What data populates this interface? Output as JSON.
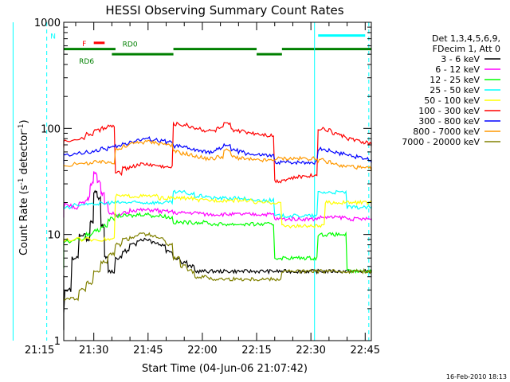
{
  "chart_data": {
    "type": "line",
    "title": "HESSI Observing Summary Count Rates",
    "xlabel": "Start Time (04-Jun-06 21:07:42)",
    "ylabel_main": "Count Rate (s",
    "ylabel_sup1": "-1",
    "ylabel_mid": " detector",
    "ylabel_sup2": "-1",
    "ylabel_end": ")",
    "x_range_minutes": [
      21.7,
      46.7
    ],
    "ylim": [
      1,
      1000
    ],
    "yscale": "log",
    "x_ticks": [
      {
        "label": "21:15",
        "value": 15
      },
      {
        "label": "21:30",
        "value": 30
      },
      {
        "label": "21:45",
        "value": 45
      },
      {
        "label": "22:00",
        "value": 60
      },
      {
        "label": "22:15",
        "value": 75
      },
      {
        "label": "22:30",
        "value": 90
      },
      {
        "label": "22:45",
        "value": 105
      }
    ],
    "y_ticks": [
      {
        "label": "1",
        "value": 1
      },
      {
        "label": "10",
        "value": 10
      },
      {
        "label": "100",
        "value": 100
      },
      {
        "label": "1000",
        "value": 1000
      }
    ],
    "legend_header": [
      "Det 1,3,4,5,6,9,",
      "FDecim 1, Att 0"
    ],
    "legend_position": "right",
    "timestamp": "16-Feb-2010 18:13",
    "flags": [
      {
        "label": "N",
        "color": "#00ffff",
        "segments": [
          [
            7.7,
            17
          ],
          [
            92,
            105
          ]
        ],
        "y": 750
      },
      {
        "label": "F",
        "color": "#ff0000",
        "segments": [
          [
            30,
            33
          ]
        ],
        "y": 640
      },
      {
        "label": "RD0",
        "color": "#008000",
        "segments": [
          [
            7.7,
            36
          ],
          [
            52,
            75
          ],
          [
            82,
            108
          ]
        ],
        "y": 560
      },
      {
        "label": "RD6",
        "color": "#008000",
        "segments": [
          [
            35,
            52
          ],
          [
            75,
            82
          ]
        ],
        "y": 500
      }
    ],
    "vlines": [
      {
        "x": 7.7,
        "color": "#00ffff",
        "style": "solid"
      },
      {
        "x": 17,
        "color": "#00ffff",
        "style": "dashed"
      },
      {
        "x": 91,
        "color": "#00ffff",
        "style": "solid"
      },
      {
        "x": 106,
        "color": "#00ffff",
        "style": "dashed"
      }
    ],
    "series": [
      {
        "name": "3 - 6 keV",
        "color": "#000000",
        "x": [
          8,
          12,
          14,
          16,
          18,
          20,
          22,
          24,
          26,
          28,
          29,
          30,
          31,
          32,
          33,
          34,
          36,
          38,
          40,
          42,
          44,
          46,
          48,
          50,
          52,
          54,
          56,
          58,
          60,
          62,
          64,
          66,
          68,
          70,
          72,
          74,
          76,
          78,
          80,
          82,
          84,
          86,
          88,
          90,
          92,
          94,
          96,
          98,
          100,
          102,
          104,
          106,
          108
        ],
        "y": [
          4,
          4,
          4,
          1.5,
          1.3,
          1.8,
          3,
          6,
          10,
          9,
          13,
          25,
          22,
          12,
          6,
          4.5,
          6,
          7,
          8,
          9,
          9,
          8.5,
          8,
          7,
          6,
          5.5,
          5,
          4.5,
          4.5,
          4.5,
          4.5,
          4.5,
          4.5,
          4.5,
          4.5,
          4.5,
          4.5,
          4.5,
          4.5,
          4.5,
          4.5,
          4.5,
          4.5,
          4.5,
          4.5,
          4.5,
          4.5,
          4.5,
          4.5,
          4.5,
          4.5,
          4.5,
          4.5
        ]
      },
      {
        "name": "6 - 12 keV",
        "color": "#ff00ff",
        "x": [
          8,
          12,
          16,
          18,
          20,
          22,
          24,
          26,
          28,
          29,
          30,
          31,
          32,
          33,
          34,
          36,
          38,
          40,
          42,
          44,
          46,
          48,
          50,
          52,
          54,
          56,
          58,
          60,
          62,
          64,
          66,
          68,
          70,
          72,
          74,
          76,
          78,
          80,
          82,
          84,
          86,
          88,
          90,
          92,
          94,
          96,
          98,
          100,
          102,
          104,
          106,
          108
        ],
        "y": [
          15,
          15,
          15,
          16,
          17,
          19,
          18,
          20,
          22,
          30,
          38,
          32,
          24,
          20,
          16,
          15,
          16,
          17,
          17,
          17,
          17,
          16.5,
          16.5,
          16,
          16,
          16,
          16,
          15.5,
          15.5,
          15.5,
          15.5,
          15.5,
          15.5,
          15.5,
          15.5,
          15.5,
          15.5,
          14,
          14,
          14,
          14,
          14,
          14,
          14.5,
          14.5,
          14.5,
          14.5,
          14,
          14,
          14,
          14,
          14
        ]
      },
      {
        "name": "12 - 25 keV",
        "color": "#00ff00",
        "x": [
          8,
          12,
          16,
          20,
          24,
          28,
          30,
          32,
          34,
          36,
          38,
          40,
          42,
          44,
          46,
          48,
          50,
          52,
          54,
          56,
          58,
          60,
          62,
          64,
          66,
          68,
          70,
          72,
          74,
          76,
          78,
          80,
          82,
          84,
          86,
          88,
          90,
          92,
          94,
          96,
          98,
          100,
          102,
          104,
          106,
          108
        ],
        "y": [
          5,
          5,
          8,
          8.5,
          9,
          10,
          11,
          12,
          14,
          15,
          15,
          15,
          15.5,
          15.5,
          15,
          15,
          14.5,
          13,
          13,
          13,
          13,
          13,
          12.5,
          12.5,
          12.5,
          12.5,
          12.5,
          12.5,
          12.5,
          12.5,
          12.5,
          6,
          6,
          6,
          6,
          6,
          6,
          10,
          10,
          10,
          10,
          4.5,
          4.5,
          4.5,
          4.5,
          4.5
        ]
      },
      {
        "name": "25 - 50 keV",
        "color": "#00ffff",
        "x": [
          8,
          12,
          16,
          20,
          24,
          28,
          30,
          32,
          34,
          36,
          38,
          40,
          42,
          44,
          46,
          48,
          50,
          52,
          54,
          56,
          58,
          60,
          62,
          64,
          66,
          68,
          70,
          72,
          74,
          76,
          78,
          80,
          82,
          84,
          86,
          88,
          90,
          92,
          94,
          96,
          98,
          100,
          102,
          104,
          106,
          108
        ],
        "y": [
          18,
          18,
          18,
          18,
          19,
          19,
          19.5,
          19.5,
          20,
          20,
          20,
          20,
          20,
          20,
          20,
          20,
          20,
          25,
          25,
          24,
          23,
          23,
          22,
          22,
          22,
          22,
          22,
          21,
          21,
          21,
          21,
          15,
          15,
          15,
          15,
          15,
          15,
          25,
          25,
          25,
          25,
          18,
          18,
          18,
          18,
          18
        ]
      },
      {
        "name": "50 - 100 keV",
        "color": "#ffff00",
        "x": [
          8,
          12,
          16,
          20,
          24,
          28,
          32,
          34,
          36,
          38,
          40,
          42,
          44,
          46,
          48,
          50,
          52,
          54,
          56,
          58,
          60,
          62,
          64,
          66,
          68,
          70,
          72,
          74,
          76,
          78,
          80,
          82,
          84,
          86,
          88,
          90,
          92,
          94,
          96,
          98,
          100,
          102,
          104,
          106,
          108
        ],
        "y": [
          9,
          9,
          9,
          9,
          9,
          9,
          9,
          9,
          23,
          23,
          23,
          23,
          23,
          23,
          22,
          22,
          22,
          22,
          22,
          21,
          21,
          21,
          21,
          21,
          21,
          21,
          21,
          20,
          20,
          20,
          20,
          12,
          12,
          12,
          12,
          12,
          12,
          20,
          20,
          20,
          20,
          20,
          20,
          20,
          20
        ]
      },
      {
        "name": "100 - 300 keV",
        "color": "#ff0000",
        "x": [
          8,
          10,
          12,
          16,
          20,
          24,
          28,
          30,
          32,
          34,
          36,
          38,
          40,
          42,
          44,
          46,
          48,
          50,
          52,
          54,
          56,
          58,
          60,
          62,
          64,
          66,
          68,
          70,
          72,
          74,
          76,
          78,
          80,
          82,
          84,
          86,
          88,
          90,
          92,
          94,
          96,
          98,
          100,
          102,
          104,
          106,
          108
        ],
        "y": [
          72,
          70,
          68,
          72,
          76,
          80,
          88,
          95,
          100,
          105,
          38,
          42,
          44,
          46,
          46,
          45,
          44,
          43,
          110,
          108,
          104,
          100,
          96,
          95,
          100,
          110,
          96,
          94,
          92,
          90,
          88,
          86,
          32,
          33,
          34,
          35,
          36,
          36,
          100,
          96,
          90,
          85,
          80,
          76,
          74,
          72,
          70
        ]
      },
      {
        "name": "300 - 800 keV",
        "color": "#0000ff",
        "x": [
          8,
          10,
          12,
          16,
          20,
          24,
          28,
          30,
          32,
          34,
          36,
          38,
          40,
          42,
          44,
          46,
          48,
          50,
          52,
          54,
          56,
          58,
          60,
          62,
          64,
          66,
          68,
          70,
          72,
          74,
          76,
          78,
          80,
          82,
          84,
          86,
          88,
          90,
          92,
          94,
          96,
          98,
          100,
          102,
          104,
          106,
          108
        ],
        "y": [
          52,
          50,
          48,
          52,
          56,
          58,
          60,
          62,
          64,
          66,
          68,
          72,
          76,
          78,
          80,
          78,
          76,
          74,
          68,
          66,
          64,
          62,
          60,
          60,
          64,
          70,
          62,
          60,
          58,
          56,
          56,
          55,
          48,
          48,
          48,
          48,
          48,
          48,
          64,
          62,
          60,
          58,
          56,
          54,
          52,
          50,
          48
        ]
      },
      {
        "name": "800 - 7000 keV",
        "color": "#ff9900",
        "x": [
          8,
          10,
          12,
          16,
          20,
          24,
          28,
          30,
          32,
          34,
          36,
          38,
          40,
          42,
          44,
          46,
          48,
          50,
          52,
          54,
          56,
          58,
          60,
          62,
          64,
          66,
          68,
          70,
          72,
          74,
          76,
          78,
          80,
          82,
          84,
          86,
          88,
          90,
          92,
          94,
          96,
          98,
          100,
          102,
          104,
          106,
          108
        ],
        "y": [
          45,
          44,
          42,
          44,
          45,
          46,
          47,
          48,
          48,
          48,
          64,
          68,
          72,
          74,
          75,
          74,
          72,
          70,
          60,
          58,
          56,
          54,
          52,
          52,
          54,
          62,
          54,
          52,
          51,
          50,
          50,
          50,
          52,
          52,
          52,
          52,
          52,
          52,
          50,
          48,
          46,
          44,
          44,
          43,
          42,
          42,
          41
        ]
      },
      {
        "name": "7000 - 20000 keV",
        "color": "#808000",
        "x": [
          8,
          12,
          16,
          18,
          20,
          22,
          24,
          26,
          28,
          30,
          32,
          34,
          36,
          38,
          40,
          42,
          44,
          46,
          48,
          50,
          52,
          54,
          56,
          58,
          60,
          62,
          64,
          66,
          68,
          70,
          72,
          74,
          76,
          78,
          80,
          82,
          84,
          86,
          88,
          90,
          92,
          94,
          96,
          98,
          100,
          102,
          104,
          106,
          108
        ],
        "y": [
          2.5,
          2.5,
          2.5,
          2.5,
          2.5,
          2.5,
          2.5,
          3,
          3.5,
          4.5,
          5.5,
          6.5,
          8,
          9,
          9.5,
          10,
          10,
          9.5,
          9,
          8,
          6,
          5,
          4.5,
          4,
          4,
          3.8,
          3.8,
          3.8,
          3.8,
          3.8,
          3.8,
          3.8,
          3.8,
          3.8,
          3.8,
          4.5,
          4.5,
          4.5,
          4.5,
          4.5,
          4.5,
          4.5,
          4.5,
          4.5,
          4.5,
          4.5,
          4.5,
          4.5,
          4.5
        ]
      }
    ]
  }
}
